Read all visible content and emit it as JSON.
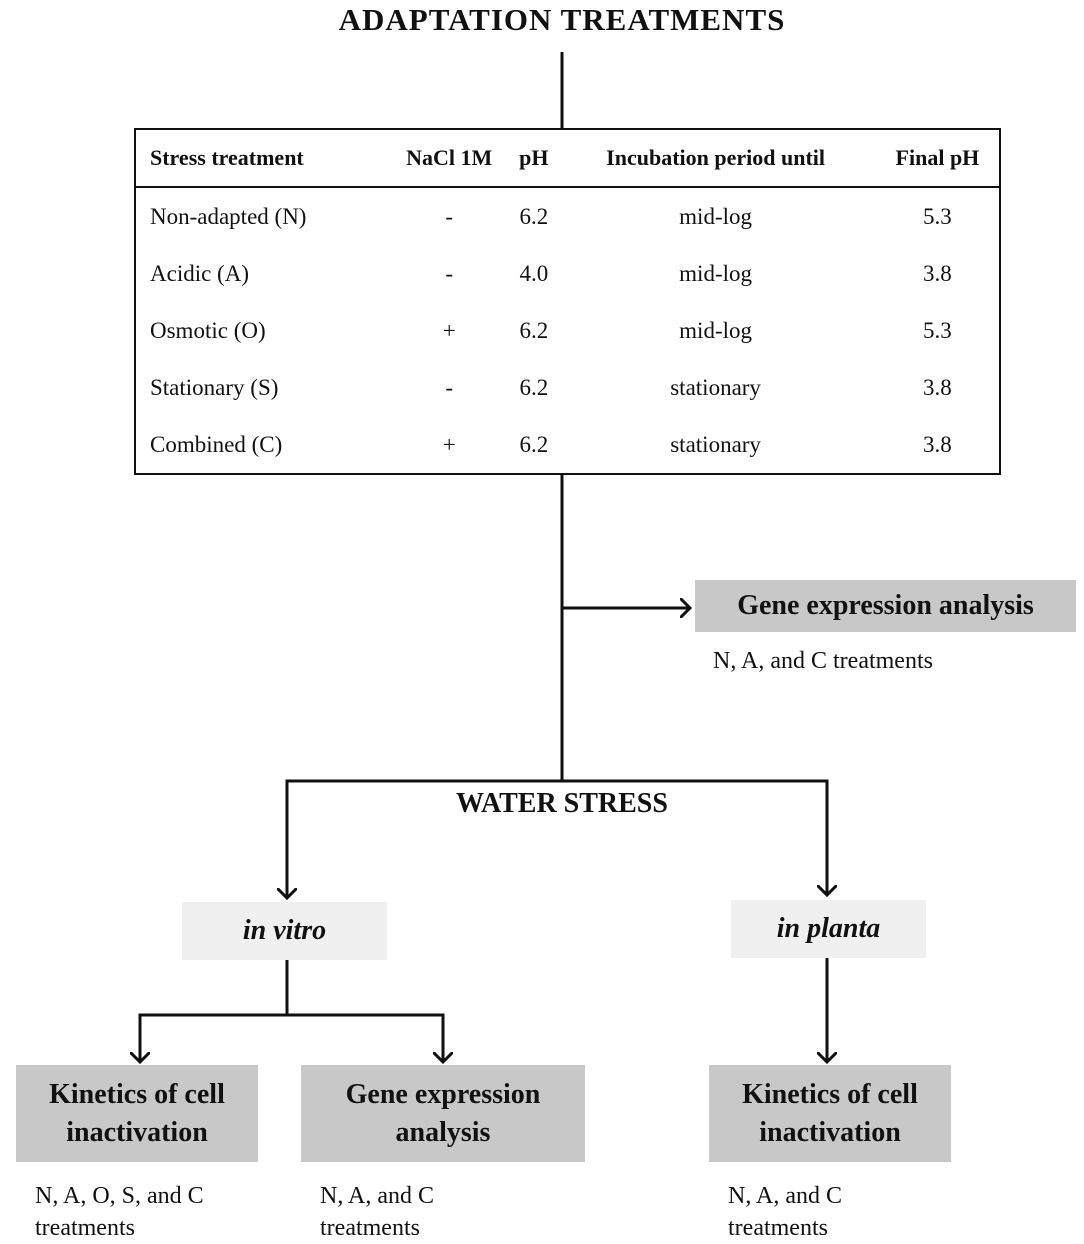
{
  "title": "ADAPTATION TREATMENTS",
  "table": {
    "headers": [
      "Stress treatment",
      "NaCl 1M",
      "pH",
      "Incubation period until",
      "Final pH"
    ],
    "rows": [
      [
        "Non-adapted (N)",
        "-",
        "6.2",
        "mid-log",
        "5.3"
      ],
      [
        "Acidic (A)",
        "-",
        "4.0",
        "mid-log",
        "3.8"
      ],
      [
        "Osmotic (O)",
        "+",
        "6.2",
        "mid-log",
        "5.3"
      ],
      [
        "Stationary (S)",
        "-",
        "6.2",
        "stationary",
        "3.8"
      ],
      [
        "Combined (C)",
        "+",
        "6.2",
        "stationary",
        "3.8"
      ]
    ]
  },
  "gene_expression_top": {
    "label": "Gene expression analysis",
    "note": "N, A, and C treatments"
  },
  "water_stress": "WATER STRESS",
  "in_vitro": "in vitro",
  "in_planta": "in planta",
  "in_vitro_kinetics": {
    "label": "Kinetics of cell inactivation",
    "note": "N, A, O, S, and C treatments"
  },
  "in_vitro_gene_expression": {
    "label": "Gene expression analysis",
    "note": "N, A, and C treatments"
  },
  "in_planta_kinetics": {
    "label": "Kinetics of cell inactivation",
    "note": "N, A, and C treatments"
  }
}
